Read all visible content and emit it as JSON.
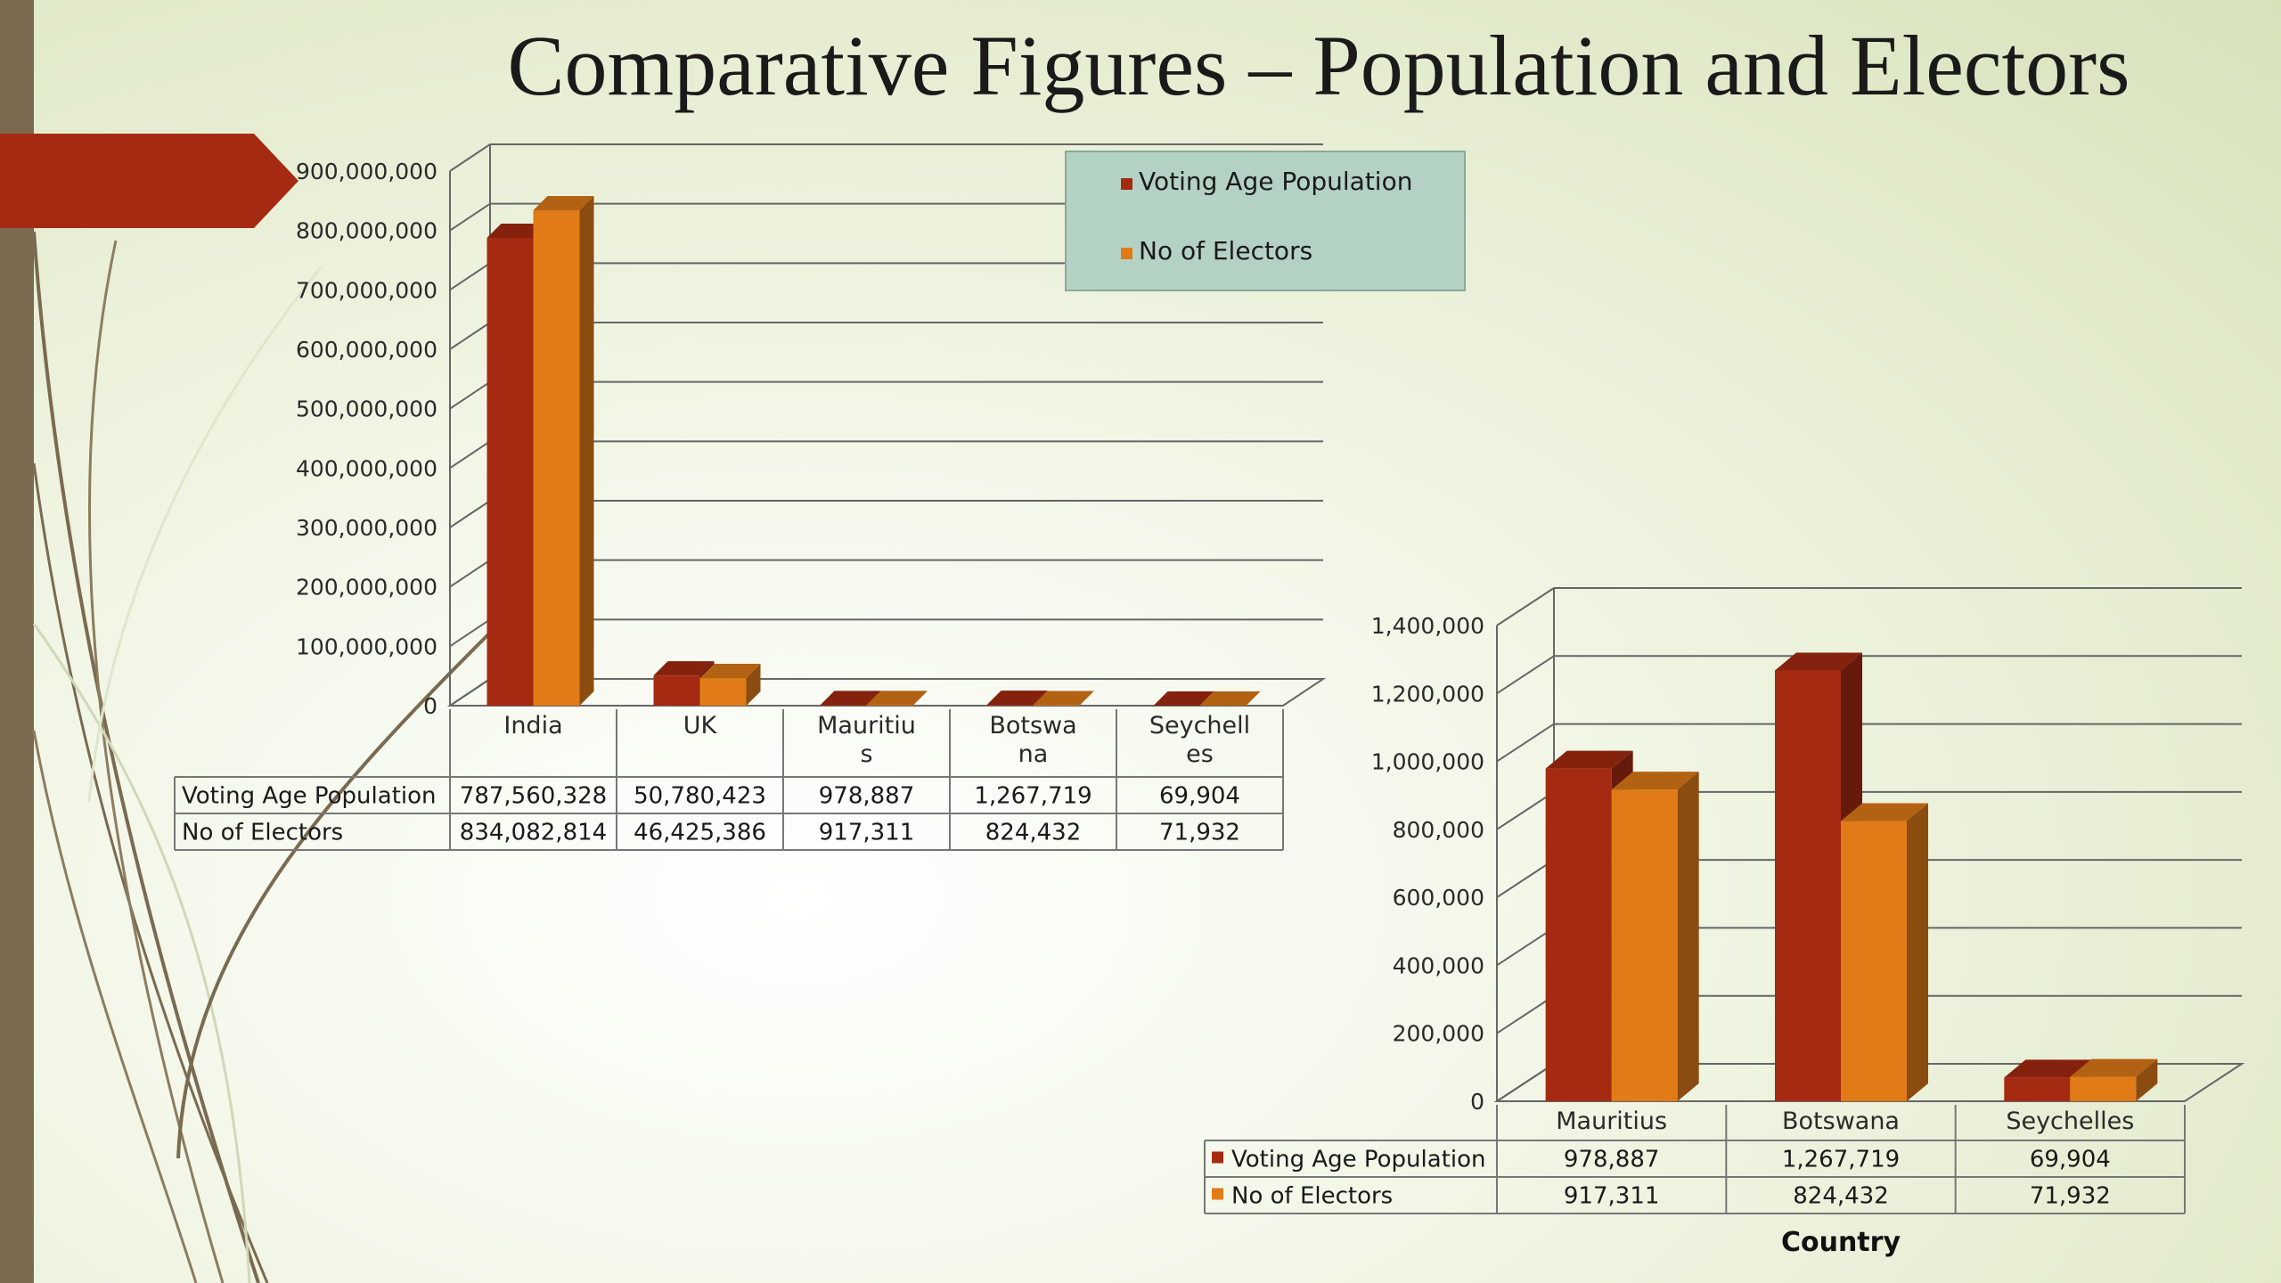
{
  "slide": {
    "title": "Comparative Figures – Population and Electors",
    "accent_color": "#a52a12",
    "sidebar_color": "#7a6a50"
  },
  "chart_data": [
    {
      "type": "bar",
      "title": "",
      "categories": [
        "India",
        "UK",
        "Mauritius",
        "Botswana",
        "Seychelles"
      ],
      "category_labels": [
        [
          "India"
        ],
        [
          "UK"
        ],
        [
          "Mauritiu",
          "s"
        ],
        [
          "Botswa",
          "na"
        ],
        [
          "Seychell",
          "es"
        ]
      ],
      "series": [
        {
          "name": "Voting Age Population",
          "color": "#a52a12",
          "values": [
            787560328,
            50780423,
            978887,
            1267719,
            69904
          ],
          "value_labels": [
            "787,560,328",
            "50,780,423",
            "978,887",
            "1,267,719",
            "69,904"
          ]
        },
        {
          "name": "No of Electors",
          "color": "#e07b18",
          "values": [
            834082814,
            46425386,
            917311,
            824432,
            71932
          ],
          "value_labels": [
            "834,082,814",
            "46,425,386",
            "917,311",
            "824,432",
            "71,932"
          ]
        }
      ],
      "yticks": [
        "0",
        "100,000,000",
        "200,000,000",
        "300,000,000",
        "400,000,000",
        "500,000,000",
        "600,000,000",
        "700,000,000",
        "800,000,000",
        "900,000,000"
      ],
      "ylim": [
        0,
        900000000
      ],
      "grid": true,
      "legend": {
        "placement": "top-right",
        "background": "#b4d2c3"
      },
      "data_table": true
    },
    {
      "type": "bar",
      "title": "",
      "xlabel": "Country",
      "categories": [
        "Mauritius",
        "Botswana",
        "Seychelles"
      ],
      "series": [
        {
          "name": "Voting Age Population",
          "color": "#a52a12",
          "values": [
            978887,
            1267719,
            69904
          ],
          "value_labels": [
            "978,887",
            "1,267,719",
            "69,904"
          ]
        },
        {
          "name": "No of Electors",
          "color": "#e07b18",
          "values": [
            917311,
            824432,
            71932
          ],
          "value_labels": [
            "917,311",
            "824,432",
            "71,932"
          ]
        }
      ],
      "yticks": [
        "0",
        "200,000",
        "400,000",
        "600,000",
        "800,000",
        "1,000,000",
        "1,200,000",
        "1,400,000"
      ],
      "ylim": [
        0,
        1400000
      ],
      "grid": true,
      "data_table": true
    }
  ]
}
